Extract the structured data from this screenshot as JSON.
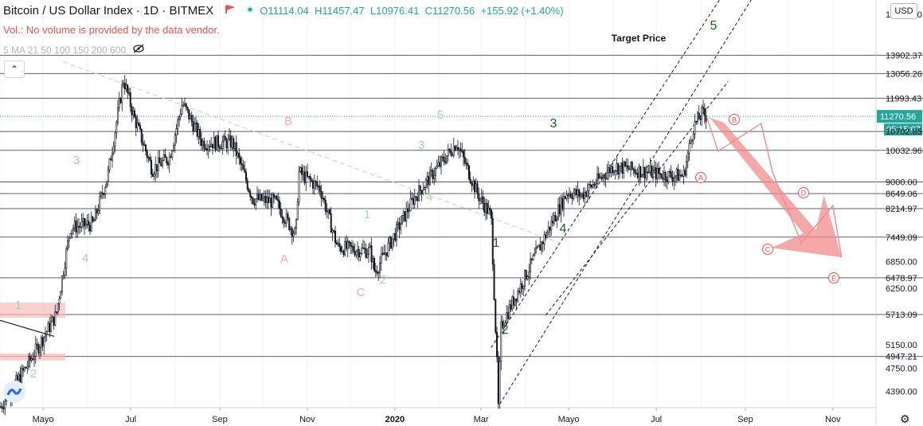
{
  "header": {
    "title": "Bitcoin / US Dollar Index",
    "interval": "1D",
    "exchange": "BITMEX",
    "open": "O11114.04",
    "high": "H11457.47",
    "low": "L10976.41",
    "close": "C11270.56",
    "change": "+155.92 (+1.40%)",
    "volume_note": "Vol.: No volume is provided by the data vendor.",
    "ma_legend": "5 MA 21 50 100 150 200 600",
    "currency": "USD",
    "countdown": "05:15:07"
  },
  "colors": {
    "up": "#26a69a",
    "down": "#ef5350",
    "candle": "#131722",
    "forecast": "#f28b8b",
    "wave_primary": "#1b5e20",
    "wave_light": "#a5d6a7"
  },
  "icons": [
    "flag-icon",
    "circle-dot-icon",
    "eye-hidden-icon",
    "arrow-collapse-icon",
    "tradingview-logo-icon",
    "gear-icon"
  ],
  "chart_data": {
    "type": "candlestick",
    "y_axis": {
      "scale": "log",
      "range": [
        4150,
        16800
      ],
      "tick_labels": [
        "16000.00",
        "13902.37",
        "13056.26",
        "11993.43",
        "11270.56",
        "10702.85",
        "10032.96",
        "9000.00",
        "8649.06",
        "8214.97",
        "7449.09",
        "6850.00",
        "6478.97",
        "6250.00",
        "5713.09",
        "5150.00",
        "4947.21",
        "4750.00",
        "4390.00"
      ],
      "current_price": "11270.56"
    },
    "x_axis": {
      "tick_labels": [
        "Mayo",
        "Jul",
        "Sep",
        "Nov",
        "2020",
        "Mar",
        "Mayo",
        "Jul",
        "Sep",
        "Nov"
      ]
    },
    "levels": [
      13902.37,
      13056.26,
      11993.43,
      11270.56,
      10702.85,
      10032.96,
      9000.0,
      8649.06,
      8214.97,
      7449.09,
      6478.97,
      5713.09,
      4947.21
    ],
    "price_path": [
      [
        "2019-04-01",
        4150
      ],
      [
        "2019-04-20",
        4800
      ],
      [
        "2019-05-10",
        5700
      ],
      [
        "2019-05-20",
        7700
      ],
      [
        "2019-06-05",
        7800
      ],
      [
        "2019-06-15",
        9200
      ],
      [
        "2019-06-26",
        12800
      ],
      [
        "2019-07-03",
        11300
      ],
      [
        "2019-07-16",
        9400
      ],
      [
        "2019-07-28",
        9800
      ],
      [
        "2019-08-06",
        11800
      ],
      [
        "2019-08-20",
        10300
      ],
      [
        "2019-09-10",
        10300
      ],
      [
        "2019-09-24",
        8500
      ],
      [
        "2019-10-10",
        8400
      ],
      [
        "2019-10-24",
        7500
      ],
      [
        "2019-10-26",
        9300
      ],
      [
        "2019-11-10",
        8800
      ],
      [
        "2019-11-22",
        7200
      ],
      [
        "2019-12-15",
        7100
      ],
      [
        "2019-12-18",
        6600
      ],
      [
        "2020-01-14",
        8500
      ],
      [
        "2020-02-13",
        10300
      ],
      [
        "2020-02-28",
        8600
      ],
      [
        "2020-03-08",
        8000
      ],
      [
        "2020-03-12",
        4850
      ],
      [
        "2020-03-13",
        4150
      ],
      [
        "2020-03-15",
        5500
      ],
      [
        "2020-04-05",
        6800
      ],
      [
        "2020-04-30",
        8700
      ],
      [
        "2020-05-10",
        8600
      ],
      [
        "2020-06-01",
        9500
      ],
      [
        "2020-07-10",
        9200
      ],
      [
        "2020-07-20",
        9200
      ],
      [
        "2020-07-27",
        10900
      ],
      [
        "2020-08-02",
        11400
      ],
      [
        "2020-08-05",
        11270
      ]
    ],
    "annotations": {
      "target_label": "Target Price",
      "green_waves": [
        "1",
        "2",
        "3",
        "4",
        "5"
      ],
      "light_waves": [
        "1",
        "2",
        "3",
        "4",
        "5"
      ],
      "pink_labels": [
        "A",
        "B",
        "C"
      ],
      "forecast_labels": [
        "A",
        "B",
        "C",
        "D",
        "E"
      ],
      "forecast_path": [
        [
          "2020-08-05",
          11270
        ],
        [
          "2020-08-13",
          10000
        ],
        [
          "2020-09-12",
          11000
        ],
        [
          "2020-09-20",
          9300
        ],
        [
          "2020-10-10",
          7300
        ],
        [
          "2020-11-01",
          8300
        ],
        [
          "2020-11-07",
          6950
        ]
      ]
    }
  }
}
